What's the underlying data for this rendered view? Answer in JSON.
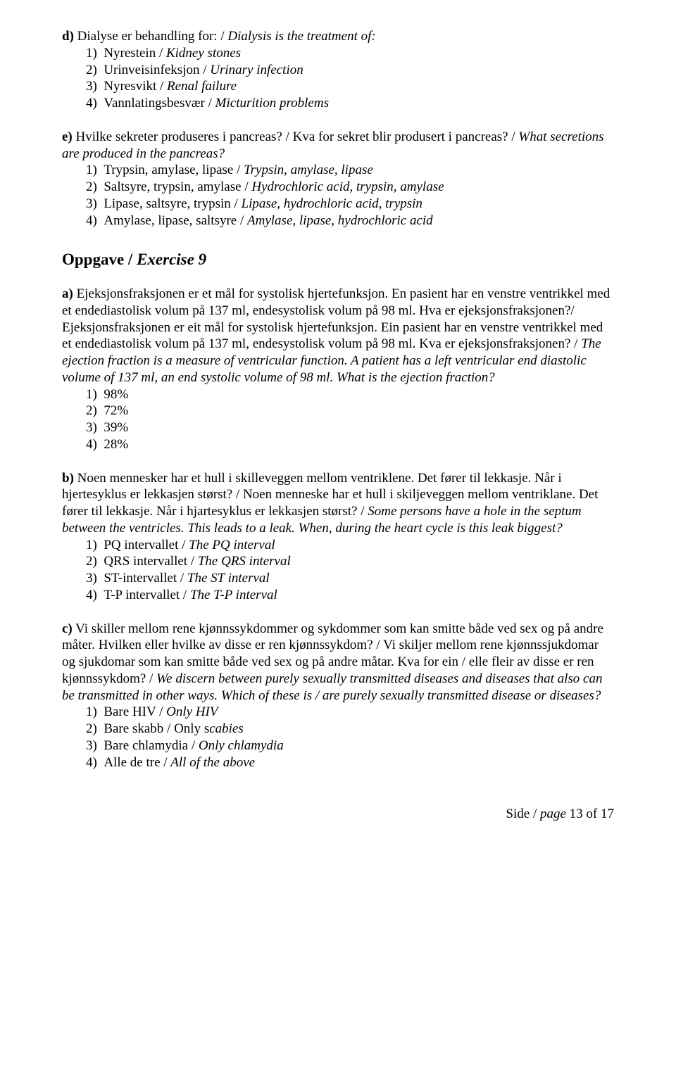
{
  "qd": {
    "label": "d)",
    "text_no": " Dialyse er behandling for: / ",
    "text_en": "Dialysis is the treatment of:",
    "options": [
      {
        "n": "1)",
        "no": "Nyrestein / ",
        "en": "Kidney stones"
      },
      {
        "n": "2)",
        "no": "Urinveisinfeksjon / ",
        "en": "Urinary infection"
      },
      {
        "n": "3)",
        "no": "Nyresvikt / ",
        "en": "Renal failure"
      },
      {
        "n": "4)",
        "no": "Vannlatingsbesvær / ",
        "en": "Micturition problems"
      }
    ]
  },
  "qe": {
    "label": "e)",
    "text_no": " Hvilke sekreter produseres i pancreas? / Kva for sekret blir produsert i pancreas? / ",
    "text_en": "What secretions are produced in the pancreas?",
    "options": [
      {
        "n": "1)",
        "no": "Trypsin, amylase, lipase / ",
        "en": "Trypsin, amylase, lipase"
      },
      {
        "n": "2)",
        "no": "Saltsyre, trypsin, amylase / ",
        "en": "Hydrochloric acid, trypsin, amylase"
      },
      {
        "n": "3)",
        "no": "Lipase, saltsyre, trypsin / ",
        "en": "Lipase, hydrochloric acid, trypsin"
      },
      {
        "n": "4)",
        "no": "Amylase, lipase, saltsyre / ",
        "en": "Amylase, lipase, hydrochloric acid"
      }
    ]
  },
  "heading": {
    "no": "Oppgave / ",
    "en": "Exercise 9"
  },
  "qa": {
    "label": "a)",
    "text_no": " Ejeksjonsfraksjonen er et mål for systolisk hjertefunksjon. En pasient har en venstre ventrikkel med et endediastolisk volum på 137 ml, endesystolisk volum på 98 ml. Hva er ejeksjonsfraksjonen?/ Ejeksjonsfraksjonen er eit mål for systolisk hjertefunksjon. Ein pasient har en venstre ventrikkel med et endediastolisk volum på 137 ml, endesystolisk volum på 98 ml. Kva er ejeksjonsfraksjonen? / ",
    "text_en": "The ejection fraction is a measure of ventricular function. A patient has a left ventricular end diastolic volume of 137 ml, an end systolic volume of 98 ml. What is the ejection fraction?",
    "options": [
      {
        "n": "1)",
        "no": "98%",
        "en": ""
      },
      {
        "n": "2)",
        "no": "72%",
        "en": ""
      },
      {
        "n": "3)",
        "no": "39%",
        "en": ""
      },
      {
        "n": "4)",
        "no": "28%",
        "en": ""
      }
    ]
  },
  "qb": {
    "label": "b)",
    "text_no": " Noen mennesker har et hull i skilleveggen mellom ventriklene. Det fører til lekkasje. Når i hjertesyklus er lekkasjen størst? / Noen menneske har et hull i skiljeveggen mellom ventriklane. Det fører til lekkasje. Når i hjartesyklus er lekkasjen størst? / ",
    "text_en": "Some persons have a hole in the septum between the ventricles. This leads to a leak. When, during the heart cycle is this leak biggest?",
    "options": [
      {
        "n": "1)",
        "no": "PQ intervallet / ",
        "en": "The PQ interval"
      },
      {
        "n": "2)",
        "no": "QRS intervallet / ",
        "en": "The QRS interval"
      },
      {
        "n": "3)",
        "no": "ST-intervallet / ",
        "en": "The ST interval"
      },
      {
        "n": "4)",
        "no": "T-P intervallet / ",
        "en": "The T-P interval"
      }
    ]
  },
  "qc": {
    "label": "c)",
    "text_no": " Vi skiller mellom rene kjønnssykdommer og sykdommer som kan smitte både ved sex og på andre måter. Hvilken eller hvilke av disse er ren kjønnssykdom? / Vi skiljer mellom rene kjønnssjukdomar og sjukdomar som kan smitte både ved sex og på andre måtar. Kva for ein / elle fleir av disse er ren kjønnssykdom? / ",
    "text_en": "We discern between purely sexually transmitted diseases and diseases that also can be transmitted in other ways. Which of these is / are purely sexually transmitted disease or diseases?",
    "options": [
      {
        "n": "1)",
        "no": "Bare HIV / ",
        "en": "Only HIV"
      },
      {
        "n": "2)",
        "no": "Bare skabb / ",
        "en_prefix": "Only s",
        "en": "cabies"
      },
      {
        "n": "3)",
        "no": "Bare chlamydia / ",
        "en": "Only chlamydia"
      },
      {
        "n": "4)",
        "no": "Alle de tre / ",
        "en": "All of the above"
      }
    ]
  },
  "footer": {
    "prefix": "Side / ",
    "italic": "page",
    "suffix": " 13 of 17"
  }
}
